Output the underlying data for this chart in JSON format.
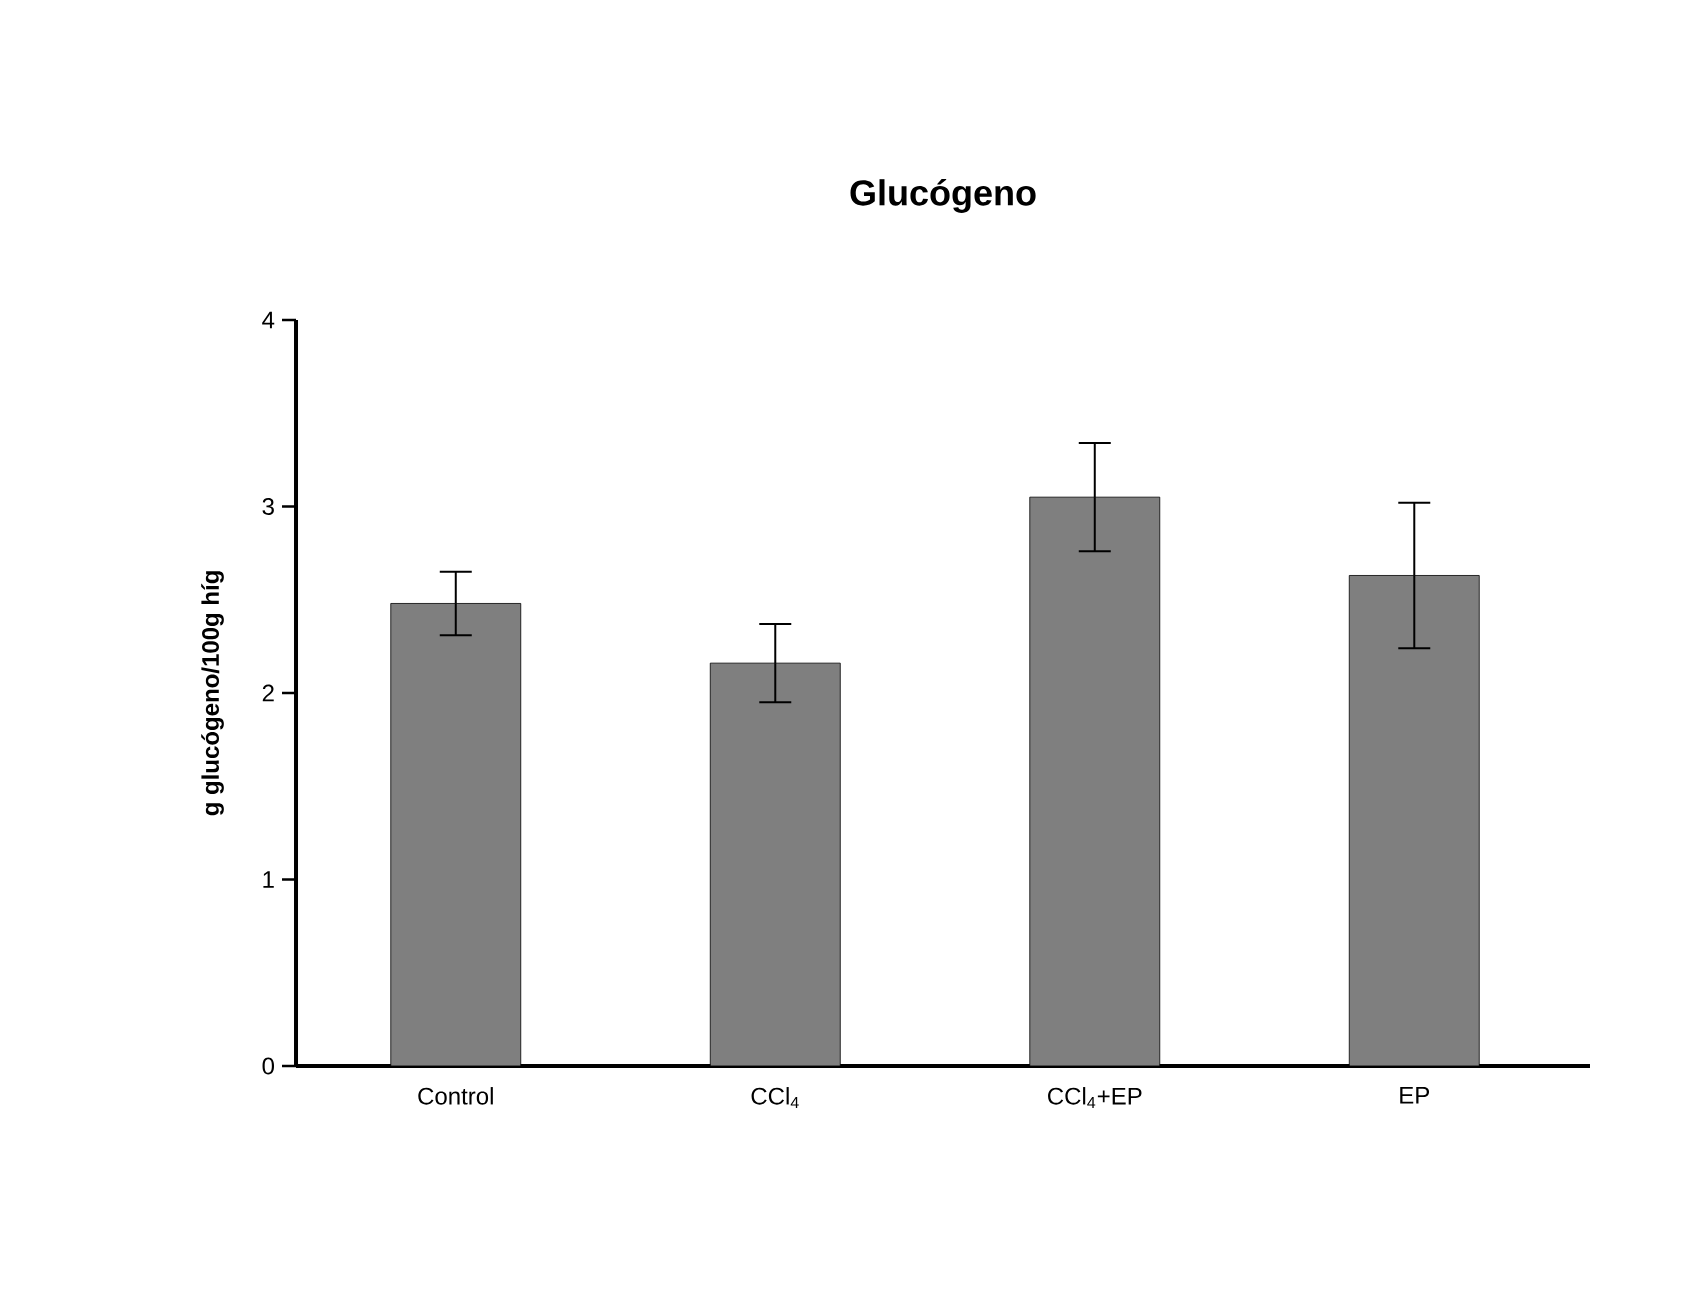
{
  "chart_data": {
    "type": "bar",
    "title": "Glucógeno",
    "ylabel": "g glucógeno/100g híg",
    "categories": [
      "Control",
      "CCl$_{4}$",
      "CCl$_{4}$+EP",
      "EP"
    ],
    "values": [
      2.48,
      2.16,
      3.05,
      2.63
    ],
    "errors": [
      0.17,
      0.21,
      0.29,
      0.39
    ],
    "color": "#7f7f7f",
    "ylim": [
      0,
      4
    ],
    "yticks": [
      0,
      1,
      2,
      3,
      4
    ],
    "grid": false
  }
}
